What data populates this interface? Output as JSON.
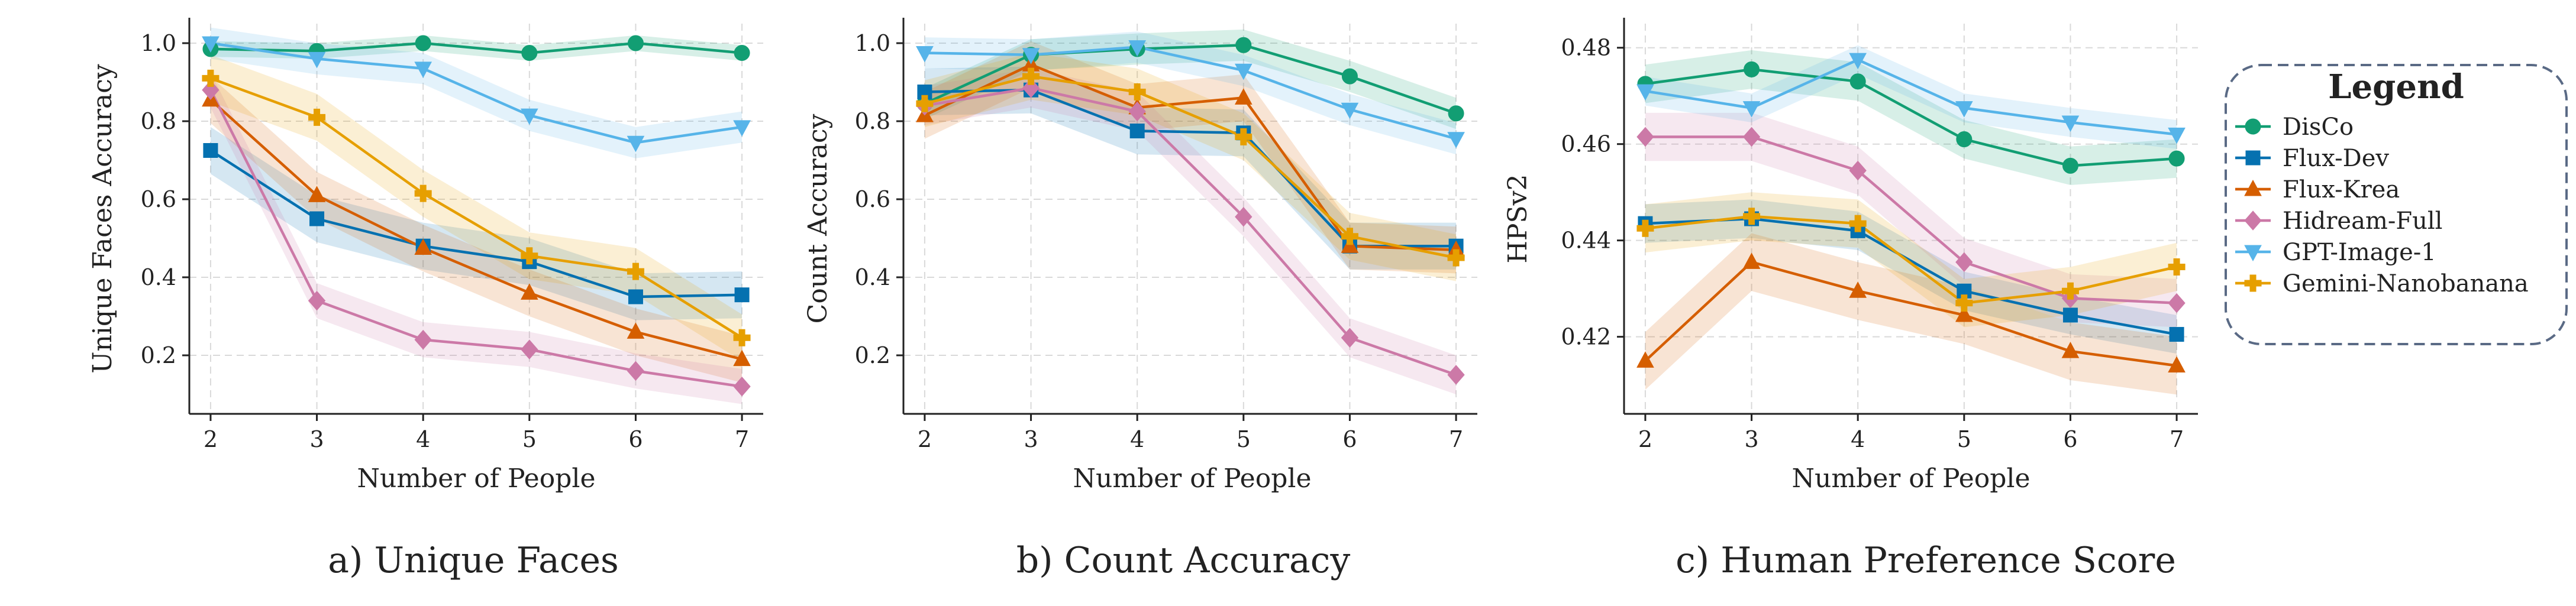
{
  "figure": {
    "captions": [
      "a) Unique Faces",
      "b) Count Accuracy",
      "c) Human Preference Score"
    ]
  },
  "legend": {
    "title": "Legend",
    "entries": [
      "DisCo",
      "Flux-Dev",
      "Flux-Krea",
      "Hidream-Full",
      "GPT-Image-1",
      "Gemini-Nanobanana"
    ]
  },
  "colors": {
    "DisCo": "#129e73",
    "Flux-Dev": "#0571b0",
    "Flux-Krea": "#d55e00",
    "Hidream-Full": "#cc79a7",
    "GPT-Image-1": "#56b4e9",
    "Gemini-Nanobanana": "#e69f00",
    "legend_border": "#5a6a85",
    "grid": "#d9d9d9"
  },
  "markers": {
    "DisCo": "circle",
    "Flux-Dev": "square",
    "Flux-Krea": "triangle-up",
    "Hidream-Full": "diamond",
    "GPT-Image-1": "triangle-down",
    "Gemini-Nanobanana": "plus"
  },
  "chart_data": [
    {
      "type": "line",
      "caption": "a) Unique Faces",
      "xlabel": "Number of People",
      "ylabel": "Unique Faces Accuracy",
      "x": [
        2,
        3,
        4,
        5,
        6,
        7
      ],
      "xlim": [
        1.8,
        7.2
      ],
      "ylim": [
        0.05,
        1.05
      ],
      "yticks": [
        0.2,
        0.4,
        0.6,
        0.8,
        1.0
      ],
      "ytick_labels": [
        "0.2",
        "0.4",
        "0.6",
        "0.8",
        "1.0"
      ],
      "grid": true,
      "series": [
        {
          "name": "DisCo",
          "values": [
            0.985,
            0.98,
            1.0,
            0.975,
            1.0,
            0.975
          ],
          "band": 0.02
        },
        {
          "name": "Flux-Dev",
          "values": [
            0.725,
            0.55,
            0.48,
            0.44,
            0.35,
            0.355
          ],
          "band": 0.06
        },
        {
          "name": "Flux-Krea",
          "values": [
            0.855,
            0.61,
            0.475,
            0.36,
            0.26,
            0.19
          ],
          "band": 0.06
        },
        {
          "name": "Hidream-Full",
          "values": [
            0.88,
            0.34,
            0.24,
            0.215,
            0.16,
            0.12
          ],
          "band": 0.045
        },
        {
          "name": "GPT-Image-1",
          "values": [
            1.0,
            0.96,
            0.935,
            0.815,
            0.745,
            0.785
          ],
          "band": 0.04
        },
        {
          "name": "Gemini-Nanobanana",
          "values": [
            0.91,
            0.81,
            0.615,
            0.455,
            0.415,
            0.245
          ],
          "band": 0.06
        }
      ]
    },
    {
      "type": "line",
      "caption": "b) Count Accuracy",
      "xlabel": "Number of People",
      "ylabel": "Count Accuracy",
      "x": [
        2,
        3,
        4,
        5,
        6,
        7
      ],
      "xlim": [
        1.8,
        7.2
      ],
      "ylim": [
        0.05,
        1.05
      ],
      "yticks": [
        0.2,
        0.4,
        0.6,
        0.8,
        1.0
      ],
      "ytick_labels": [
        "0.2",
        "0.4",
        "0.6",
        "0.8",
        "1.0"
      ],
      "grid": true,
      "series": [
        {
          "name": "DisCo",
          "values": [
            0.845,
            0.97,
            0.985,
            0.995,
            0.915,
            0.82
          ],
          "band": 0.04
        },
        {
          "name": "Flux-Dev",
          "values": [
            0.875,
            0.88,
            0.775,
            0.77,
            0.48,
            0.48
          ],
          "band": 0.06
        },
        {
          "name": "Flux-Krea",
          "values": [
            0.815,
            0.945,
            0.835,
            0.86,
            0.48,
            0.47
          ],
          "band": 0.06
        },
        {
          "name": "Hidream-Full",
          "values": [
            0.84,
            0.885,
            0.825,
            0.555,
            0.245,
            0.15
          ],
          "band": 0.05
        },
        {
          "name": "GPT-Image-1",
          "values": [
            0.975,
            0.97,
            0.99,
            0.93,
            0.83,
            0.755
          ],
          "band": 0.04
        },
        {
          "name": "Gemini-Nanobanana",
          "values": [
            0.845,
            0.915,
            0.875,
            0.76,
            0.505,
            0.45
          ],
          "band": 0.06
        }
      ]
    },
    {
      "type": "line",
      "caption": "c) Human Preference Score",
      "xlabel": "Number of People",
      "ylabel": "HPSv2",
      "x": [
        2,
        3,
        4,
        5,
        6,
        7
      ],
      "xlim": [
        1.8,
        7.2
      ],
      "ylim": [
        0.404,
        0.485
      ],
      "yticks": [
        0.42,
        0.44,
        0.46,
        0.48
      ],
      "ytick_labels": [
        "0.42",
        "0.44",
        "0.46",
        "0.48"
      ],
      "grid": true,
      "series": [
        {
          "name": "DisCo",
          "values": [
            0.4725,
            0.4755,
            0.473,
            0.461,
            0.4555,
            0.457
          ],
          "band": 0.004
        },
        {
          "name": "Flux-Dev",
          "values": [
            0.4435,
            0.4445,
            0.442,
            0.4295,
            0.4245,
            0.4205
          ],
          "band": 0.004
        },
        {
          "name": "Flux-Krea",
          "values": [
            0.415,
            0.4355,
            0.4295,
            0.4245,
            0.417,
            0.414
          ],
          "band": 0.006
        },
        {
          "name": "Hidream-Full",
          "values": [
            0.4615,
            0.4615,
            0.4545,
            0.4355,
            0.428,
            0.427
          ],
          "band": 0.005
        },
        {
          "name": "GPT-Image-1",
          "values": [
            0.471,
            0.4675,
            0.4775,
            0.4675,
            0.4645,
            0.462
          ],
          "band": 0.003
        },
        {
          "name": "Gemini-Nanobanana",
          "values": [
            0.4425,
            0.445,
            0.4435,
            0.427,
            0.4295,
            0.4345
          ],
          "band": 0.005
        }
      ]
    }
  ]
}
